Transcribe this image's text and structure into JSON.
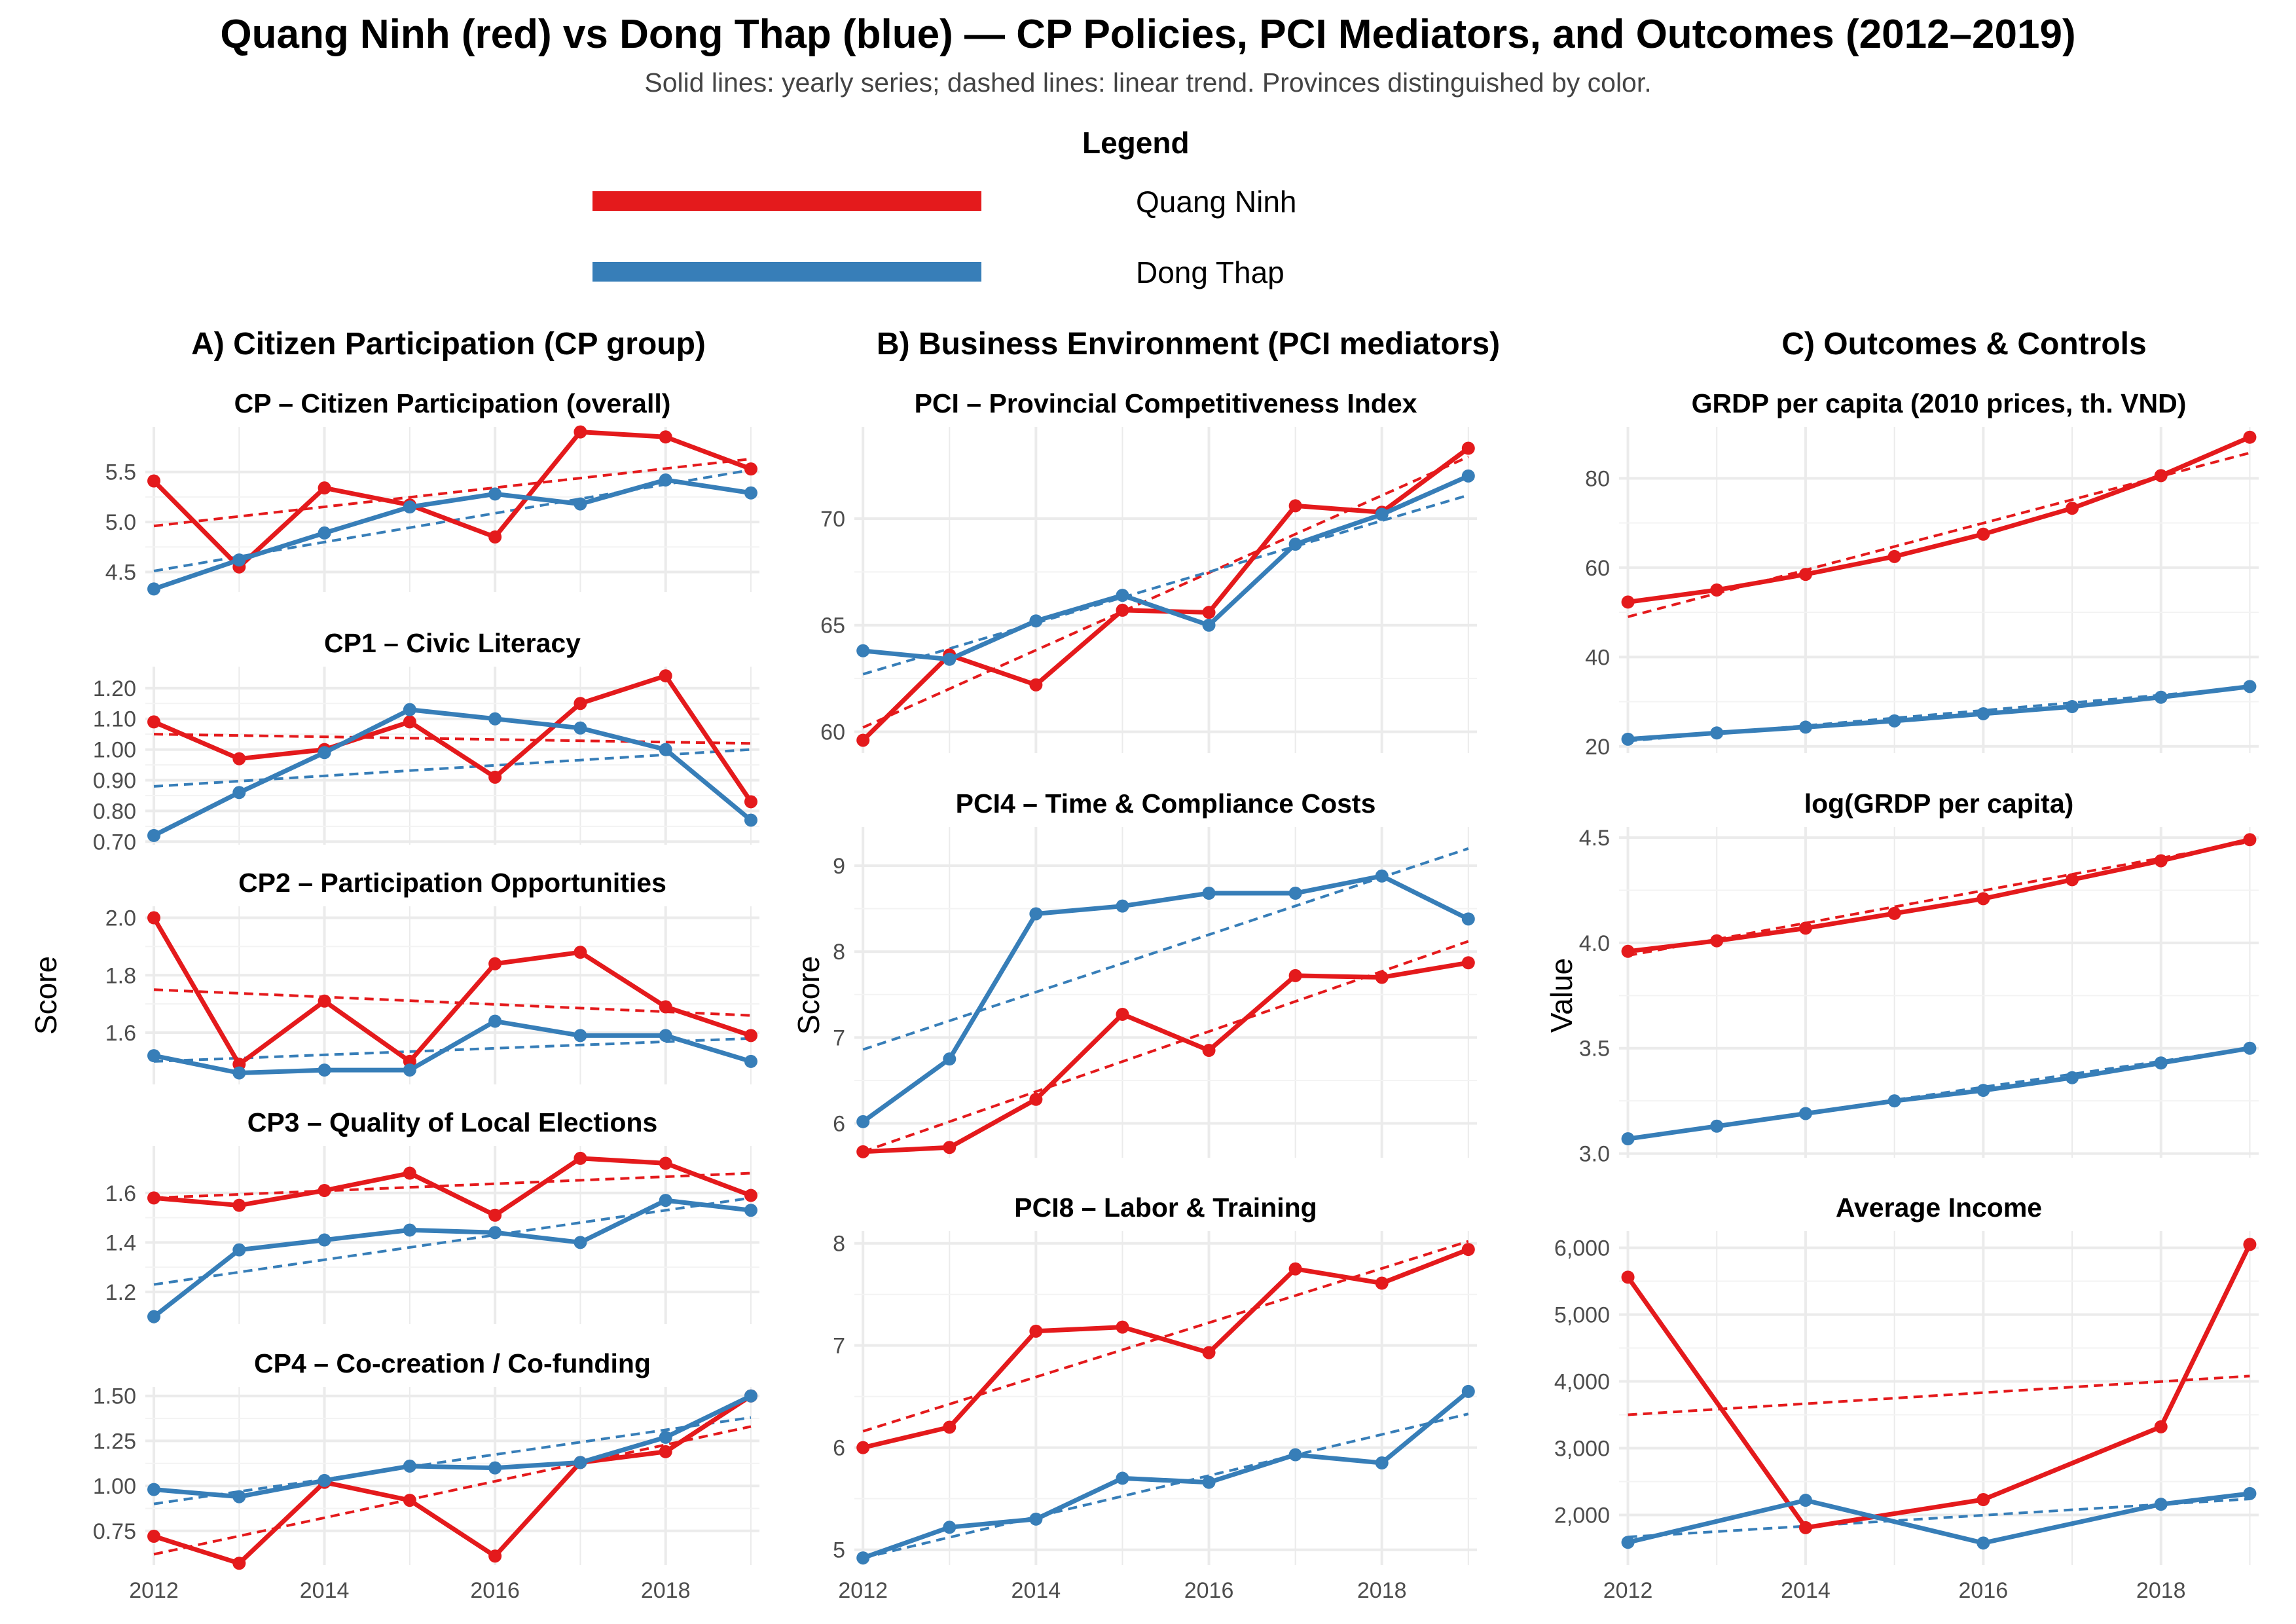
{
  "title": "Quang Ninh (red) vs Dong Thap (blue) — CP Policies, PCI Mediators, and Outcomes (2012–2019)",
  "subtitle": "Solid lines: yearly series; dashed lines: linear trend. Provinces distinguished by color.",
  "legend": {
    "title": "Legend",
    "items": [
      {
        "name": "Quang Ninh",
        "color": "#E41A1C"
      },
      {
        "name": "Dong Thap",
        "color": "#377EB8"
      }
    ]
  },
  "columns": [
    {
      "title": "A) Citizen Participation (CP group)",
      "ylabel": "Score"
    },
    {
      "title": "B) Business Environment (PCI mediators)",
      "ylabel": "Score"
    },
    {
      "title": "C) Outcomes & Controls",
      "ylabel": "Value"
    }
  ],
  "chart_data": [
    {
      "type": "line",
      "title": "CP – Citizen Participation (overall)",
      "column": 0,
      "x": [
        2012,
        2013,
        2014,
        2015,
        2016,
        2017,
        2018,
        2019
      ],
      "xticks": [],
      "ylim": [
        4.3,
        5.95
      ],
      "yticks": [
        4.5,
        5.0,
        5.5
      ],
      "ytick_labels": [
        "4.5",
        "5.0",
        "5.5"
      ],
      "series": [
        {
          "name": "Quang Ninh",
          "values": [
            5.41,
            4.55,
            5.34,
            5.17,
            4.85,
            5.9,
            5.85,
            5.53
          ],
          "trend": [
            4.96,
            5.63
          ]
        },
        {
          "name": "Dong Thap",
          "values": [
            4.33,
            4.62,
            4.89,
            5.15,
            5.28,
            5.18,
            5.42,
            5.29
          ],
          "trend": [
            4.51,
            5.52
          ]
        }
      ]
    },
    {
      "type": "line",
      "title": "CP1 – Civic Literacy",
      "column": 0,
      "x": [
        2012,
        2013,
        2014,
        2015,
        2016,
        2017,
        2018,
        2019
      ],
      "xticks": [],
      "ylim": [
        0.69,
        1.27
      ],
      "yticks": [
        0.7,
        0.8,
        0.9,
        1.0,
        1.1,
        1.2
      ],
      "ytick_labels": [
        "0.70",
        "0.80",
        "0.90",
        "1.00",
        "1.10",
        "1.20"
      ],
      "series": [
        {
          "name": "Quang Ninh",
          "values": [
            1.09,
            0.97,
            1.0,
            1.09,
            0.91,
            1.15,
            1.24,
            0.83
          ],
          "trend": [
            1.05,
            1.02
          ]
        },
        {
          "name": "Dong Thap",
          "values": [
            0.72,
            0.86,
            0.99,
            1.13,
            1.1,
            1.07,
            1.0,
            0.77
          ],
          "trend": [
            0.88,
            1.0
          ]
        }
      ]
    },
    {
      "type": "line",
      "title": "CP2 – Participation Opportunities",
      "column": 0,
      "x": [
        2012,
        2013,
        2014,
        2015,
        2016,
        2017,
        2018,
        2019
      ],
      "xticks": [],
      "ylim": [
        1.42,
        2.04
      ],
      "yticks": [
        1.6,
        1.8,
        2.0
      ],
      "ytick_labels": [
        "1.6",
        "1.8",
        "2.0"
      ],
      "series": [
        {
          "name": "Quang Ninh",
          "values": [
            2.0,
            1.49,
            1.71,
            1.5,
            1.84,
            1.88,
            1.69,
            1.59
          ],
          "trend": [
            1.75,
            1.66
          ]
        },
        {
          "name": "Dong Thap",
          "values": [
            1.52,
            1.46,
            1.47,
            1.47,
            1.64,
            1.59,
            1.59,
            1.5
          ],
          "trend": [
            1.5,
            1.58
          ]
        }
      ]
    },
    {
      "type": "line",
      "title": "CP3 – Quality of Local Elections",
      "column": 0,
      "x": [
        2012,
        2013,
        2014,
        2015,
        2016,
        2017,
        2018,
        2019
      ],
      "xticks": [],
      "ylim": [
        1.07,
        1.79
      ],
      "yticks": [
        1.2,
        1.4,
        1.6
      ],
      "ytick_labels": [
        "1.2",
        "1.4",
        "1.6"
      ],
      "series": [
        {
          "name": "Quang Ninh",
          "values": [
            1.58,
            1.55,
            1.61,
            1.68,
            1.51,
            1.74,
            1.72,
            1.59
          ],
          "trend": [
            1.58,
            1.68
          ]
        },
        {
          "name": "Dong Thap",
          "values": [
            1.1,
            1.37,
            1.41,
            1.45,
            1.44,
            1.4,
            1.57,
            1.53
          ],
          "trend": [
            1.23,
            1.58
          ]
        }
      ]
    },
    {
      "type": "line",
      "title": "CP4 – Co-creation / Co-funding",
      "column": 0,
      "x": [
        2012,
        2013,
        2014,
        2015,
        2016,
        2017,
        2018,
        2019
      ],
      "xticks": [
        2012,
        2014,
        2016,
        2018
      ],
      "ylim": [
        0.56,
        1.55
      ],
      "yticks": [
        0.75,
        1.0,
        1.25,
        1.5
      ],
      "ytick_labels": [
        "0.75",
        "1.00",
        "1.25",
        "1.50"
      ],
      "series": [
        {
          "name": "Quang Ninh",
          "values": [
            0.72,
            0.57,
            1.02,
            0.92,
            0.61,
            1.13,
            1.19,
            1.5
          ],
          "trend": [
            0.62,
            1.33
          ]
        },
        {
          "name": "Dong Thap",
          "values": [
            0.98,
            0.94,
            1.03,
            1.11,
            1.1,
            1.13,
            1.27,
            1.5
          ],
          "trend": [
            0.9,
            1.38
          ]
        }
      ]
    },
    {
      "type": "line",
      "title": "PCI – Provincial Competitiveness Index",
      "column": 1,
      "x": [
        2012,
        2013,
        2014,
        2015,
        2016,
        2017,
        2018,
        2019
      ],
      "xticks": [],
      "ylim": [
        59.0,
        74.3
      ],
      "yticks": [
        60,
        65,
        70
      ],
      "ytick_labels": [
        "60",
        "65",
        "70"
      ],
      "series": [
        {
          "name": "Quang Ninh",
          "values": [
            59.6,
            63.6,
            62.2,
            65.7,
            65.6,
            70.6,
            70.3,
            73.3
          ],
          "trend": [
            60.2,
            72.9
          ]
        },
        {
          "name": "Dong Thap",
          "values": [
            63.8,
            63.4,
            65.2,
            66.4,
            65.0,
            68.8,
            70.2,
            72.0
          ],
          "trend": [
            62.7,
            71.1
          ]
        }
      ]
    },
    {
      "type": "line",
      "title": "PCI4 – Time & Compliance Costs",
      "column": 1,
      "x": [
        2012,
        2013,
        2014,
        2015,
        2016,
        2017,
        2018,
        2019
      ],
      "xticks": [],
      "ylim": [
        5.6,
        9.45
      ],
      "yticks": [
        6,
        7,
        8,
        9
      ],
      "ytick_labels": [
        "6",
        "7",
        "8",
        "9"
      ],
      "series": [
        {
          "name": "Quang Ninh",
          "values": [
            5.67,
            5.72,
            6.28,
            7.27,
            6.85,
            7.72,
            7.7,
            7.87
          ],
          "trend": [
            5.67,
            8.12
          ]
        },
        {
          "name": "Dong Thap",
          "values": [
            6.02,
            6.75,
            8.44,
            8.53,
            8.68,
            8.68,
            8.88,
            8.38
          ],
          "trend": [
            6.86,
            9.2
          ]
        }
      ]
    },
    {
      "type": "line",
      "title": "PCI8 – Labor & Training",
      "column": 1,
      "x": [
        2012,
        2013,
        2014,
        2015,
        2016,
        2017,
        2018,
        2019
      ],
      "xticks": [
        2012,
        2014,
        2016,
        2018
      ],
      "ylim": [
        4.85,
        8.12
      ],
      "yticks": [
        5,
        6,
        7,
        8
      ],
      "ytick_labels": [
        "5",
        "6",
        "7",
        "8"
      ],
      "series": [
        {
          "name": "Quang Ninh",
          "values": [
            6.0,
            6.2,
            7.14,
            7.18,
            6.93,
            7.75,
            7.61,
            7.94
          ],
          "trend": [
            6.16,
            8.02
          ]
        },
        {
          "name": "Dong Thap",
          "values": [
            4.92,
            5.22,
            5.3,
            5.7,
            5.66,
            5.93,
            5.85,
            6.55
          ],
          "trend": [
            4.92,
            6.33
          ]
        }
      ]
    },
    {
      "type": "line",
      "title": "GRDP per capita (2010 prices, th. VND)",
      "column": 2,
      "x": [
        2012,
        2013,
        2014,
        2015,
        2016,
        2017,
        2018,
        2019
      ],
      "xticks": [],
      "ylim": [
        18.5,
        91.5
      ],
      "yticks": [
        20,
        40,
        60,
        80
      ],
      "ytick_labels": [
        "20",
        "40",
        "60",
        "80"
      ],
      "series": [
        {
          "name": "Quang Ninh",
          "values": [
            52.3,
            55.0,
            58.5,
            62.5,
            67.5,
            73.3,
            80.6,
            89.2
          ],
          "trend": [
            49.0,
            85.7
          ]
        },
        {
          "name": "Dong Thap",
          "values": [
            21.6,
            23.0,
            24.3,
            25.7,
            27.3,
            28.9,
            31.0,
            33.4
          ],
          "trend": [
            21.2,
            33.2
          ]
        }
      ]
    },
    {
      "type": "line",
      "title": "log(GRDP per capita)",
      "column": 2,
      "x": [
        2012,
        2013,
        2014,
        2015,
        2016,
        2017,
        2018,
        2019
      ],
      "xticks": [],
      "ylim": [
        2.98,
        4.55
      ],
      "yticks": [
        3.0,
        3.5,
        4.0,
        4.5
      ],
      "ytick_labels": [
        "3.0",
        "3.5",
        "4.0",
        "4.5"
      ],
      "series": [
        {
          "name": "Quang Ninh",
          "values": [
            3.96,
            4.01,
            4.07,
            4.14,
            4.21,
            4.3,
            4.39,
            4.49
          ],
          "trend": [
            3.94,
            4.48
          ]
        },
        {
          "name": "Dong Thap",
          "values": [
            3.07,
            3.13,
            3.19,
            3.25,
            3.3,
            3.36,
            3.43,
            3.5
          ],
          "trend": [
            3.07,
            3.5
          ]
        }
      ]
    },
    {
      "type": "line",
      "title": "Average Income",
      "column": 2,
      "x": [
        2012,
        2014,
        2016,
        2018,
        2019
      ],
      "xticks": [
        2012,
        2014,
        2016,
        2018
      ],
      "ylim": [
        1250,
        6250
      ],
      "yticks": [
        2000,
        3000,
        4000,
        5000,
        6000
      ],
      "ytick_labels": [
        "2,000",
        "3,000",
        "4,000",
        "5,000",
        "6,000"
      ],
      "series": [
        {
          "name": "Quang Ninh",
          "values": [
            5560,
            1810,
            2230,
            3320,
            6050
          ],
          "trend": [
            3500,
            4080
          ]
        },
        {
          "name": "Dong Thap",
          "values": [
            1590,
            2220,
            1580,
            2160,
            2320
          ],
          "trend": [
            1670,
            2240
          ]
        }
      ]
    }
  ]
}
